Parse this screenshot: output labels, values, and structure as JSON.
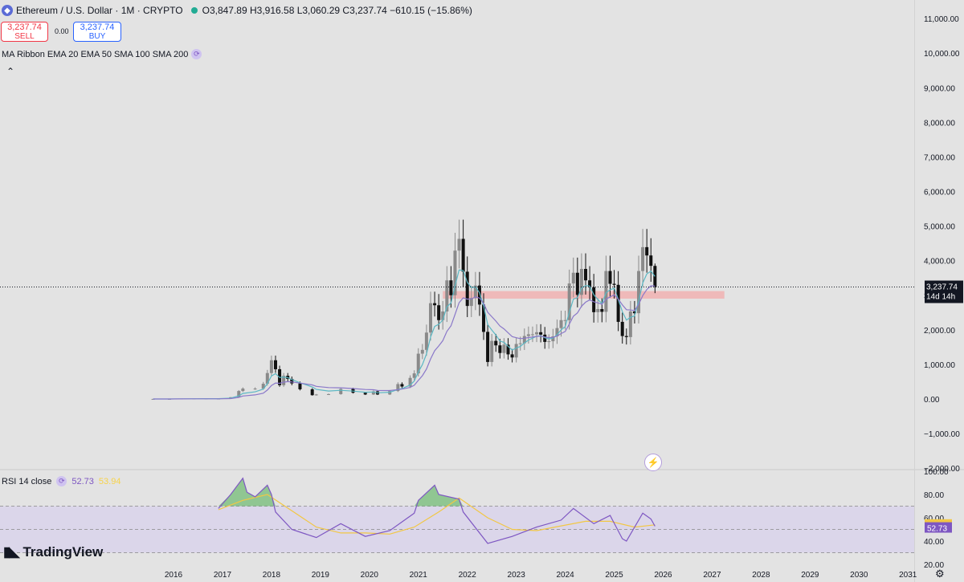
{
  "header": {
    "coin_icon": "ethereum-icon",
    "symbol": "Ethereum / U.S. Dollar · 1M · CRYPTO",
    "status_color": "#22ab94",
    "ohlc": "O3,847.89 H3,916.58 L3,060.29 C3,237.74 −610.15 (−15.86%)"
  },
  "trade": {
    "sell_price": "3,237.74",
    "sell_label": "SELL",
    "spread": "0.00",
    "buy_price": "3,237.74",
    "buy_label": "BUY"
  },
  "indicators": {
    "ma_ribbon": "MA Ribbon EMA 20 EMA 50 SMA 100 SMA 200",
    "rsi": "RSI 14 close",
    "rsi_value": "52.73",
    "rsi_ma_value": "53.94"
  },
  "price_tag": {
    "price": "3,237.74",
    "countdown": "14d 14h"
  },
  "logo": "TradingView",
  "colors": {
    "bull": "#8a8a8a",
    "bear": "#111111",
    "ma_fast": "#5bb8c4",
    "ma_slow": "#8a78c9",
    "zone": "#f0b4b4",
    "rsi": "#7e57c2",
    "rsi_ma": "#f2c744"
  },
  "chart_data": [
    {
      "type": "candlestick",
      "title": "Ethereum / U.S. Dollar · 1M · CRYPTO",
      "ylim": [
        -2000,
        11500
      ],
      "y_ticks": [
        "11,000.00",
        "10,000.00",
        "9,000.00",
        "8,000.00",
        "7,000.00",
        "6,000.00",
        "5,000.00",
        "4,000.00",
        "3,000.00",
        "2,000.00",
        "1,000.00",
        "0.00",
        "−1,000.00",
        "−2,000.00"
      ],
      "x_ticks": [
        "2016",
        "2017",
        "2018",
        "2019",
        "2020",
        "2021",
        "2022",
        "2023",
        "2024",
        "2025",
        "2026",
        "2027",
        "2028",
        "2029",
        "2030",
        "2031"
      ],
      "close_series": [
        [
          "2015-08",
          1
        ],
        [
          "2015-12",
          1
        ],
        [
          "2016-03",
          11
        ],
        [
          "2016-06",
          12
        ],
        [
          "2016-09",
          13
        ],
        [
          "2016-12",
          8
        ],
        [
          "2017-03",
          50
        ],
        [
          "2017-05",
          230
        ],
        [
          "2017-06",
          300
        ],
        [
          "2017-09",
          300
        ],
        [
          "2017-11",
          440
        ],
        [
          "2017-12",
          750
        ],
        [
          "2018-01",
          1120
        ],
        [
          "2018-02",
          860
        ],
        [
          "2018-03",
          400
        ],
        [
          "2018-04",
          670
        ],
        [
          "2018-05",
          580
        ],
        [
          "2018-06",
          450
        ],
        [
          "2018-08",
          280
        ],
        [
          "2018-11",
          110
        ],
        [
          "2018-12",
          130
        ],
        [
          "2019-03",
          140
        ],
        [
          "2019-06",
          290
        ],
        [
          "2019-09",
          180
        ],
        [
          "2019-12",
          130
        ],
        [
          "2020-02",
          220
        ],
        [
          "2020-03",
          130
        ],
        [
          "2020-06",
          230
        ],
        [
          "2020-08",
          430
        ],
        [
          "2020-09",
          360
        ],
        [
          "2020-11",
          610
        ],
        [
          "2020-12",
          740
        ],
        [
          "2021-01",
          1310
        ],
        [
          "2021-02",
          1420
        ],
        [
          "2021-03",
          1920
        ],
        [
          "2021-04",
          2770
        ],
        [
          "2021-05",
          2710
        ],
        [
          "2021-06",
          2280
        ],
        [
          "2021-07",
          2530
        ],
        [
          "2021-08",
          3430
        ],
        [
          "2021-09",
          3000
        ],
        [
          "2021-10",
          4290
        ],
        [
          "2021-11",
          4630
        ],
        [
          "2021-12",
          3680
        ],
        [
          "2022-01",
          2690
        ],
        [
          "2022-02",
          2920
        ],
        [
          "2022-03",
          3280
        ],
        [
          "2022-04",
          2730
        ],
        [
          "2022-05",
          1940
        ],
        [
          "2022-06",
          1070
        ],
        [
          "2022-07",
          1680
        ],
        [
          "2022-08",
          1550
        ],
        [
          "2022-09",
          1330
        ],
        [
          "2022-10",
          1570
        ],
        [
          "2022-11",
          1290
        ],
        [
          "2022-12",
          1200
        ],
        [
          "2023-01",
          1590
        ],
        [
          "2023-02",
          1610
        ],
        [
          "2023-03",
          1820
        ],
        [
          "2023-04",
          1870
        ],
        [
          "2023-05",
          1870
        ],
        [
          "2023-06",
          1930
        ],
        [
          "2023-07",
          1860
        ],
        [
          "2023-08",
          1650
        ],
        [
          "2023-09",
          1670
        ],
        [
          "2023-10",
          1810
        ],
        [
          "2023-11",
          2050
        ],
        [
          "2023-12",
          2280
        ],
        [
          "2024-01",
          2280
        ],
        [
          "2024-02",
          3340
        ],
        [
          "2024-03",
          3650
        ],
        [
          "2024-04",
          3010
        ],
        [
          "2024-05",
          3760
        ],
        [
          "2024-06",
          3430
        ],
        [
          "2024-07",
          3230
        ],
        [
          "2024-08",
          2510
        ],
        [
          "2024-09",
          2600
        ],
        [
          "2024-10",
          2520
        ],
        [
          "2024-11",
          3700
        ],
        [
          "2024-12",
          3330
        ],
        [
          "2025-01",
          3300
        ],
        [
          "2025-02",
          2230
        ],
        [
          "2025-03",
          1820
        ],
        [
          "2025-04",
          1790
        ],
        [
          "2025-05",
          2530
        ],
        [
          "2025-06",
          2480
        ],
        [
          "2025-07",
          3700
        ],
        [
          "2025-08",
          4390
        ],
        [
          "2025-09",
          4150
        ],
        [
          "2025-10",
          3850
        ],
        [
          "2025-11",
          3237.74
        ]
      ],
      "last_candle": {
        "open": 3847.89,
        "high": 3916.58,
        "low": 3060.29,
        "close": 3237.74
      },
      "resistance_zone": [
        2900,
        3120
      ],
      "series": [
        {
          "name": "EMA 20",
          "color": "#5bb8c4"
        },
        {
          "name": "EMA 50",
          "color": "#8a78c9"
        }
      ]
    },
    {
      "type": "line",
      "title": "RSI 14 close",
      "ylim": [
        20,
        100
      ],
      "y_ticks": [
        "100.00",
        "80.00",
        "60.00",
        "40.00",
        "20.00"
      ],
      "bands": [
        70,
        50,
        30
      ],
      "series": [
        {
          "name": "RSI",
          "values": [
            [
              "2016-12",
              68
            ],
            [
              "2017-03",
              80
            ],
            [
              "2017-06",
              94
            ],
            [
              "2017-07",
              82
            ],
            [
              "2017-09",
              78
            ],
            [
              "2017-12",
              88
            ],
            [
              "2018-01",
              80
            ],
            [
              "2018-02",
              65
            ],
            [
              "2018-06",
              50
            ],
            [
              "2018-12",
              43
            ],
            [
              "2019-06",
              55
            ],
            [
              "2019-12",
              44
            ],
            [
              "2020-06",
              49
            ],
            [
              "2020-12",
              64
            ],
            [
              "2021-01",
              75
            ],
            [
              "2021-05",
              88
            ],
            [
              "2021-06",
              80
            ],
            [
              "2021-11",
              76
            ],
            [
              "2021-12",
              65
            ],
            [
              "2022-06",
              38
            ],
            [
              "2022-12",
              44
            ],
            [
              "2023-06",
              52
            ],
            [
              "2023-12",
              58
            ],
            [
              "2024-03",
              68
            ],
            [
              "2024-08",
              55
            ],
            [
              "2024-12",
              62
            ],
            [
              "2025-03",
              42
            ],
            [
              "2025-04",
              40
            ],
            [
              "2025-08",
              64
            ],
            [
              "2025-10",
              59
            ],
            [
              "2025-11",
              52.73
            ]
          ]
        },
        {
          "name": "RSI-based MA",
          "values": [
            [
              "2016-12",
              67
            ],
            [
              "2017-06",
              75
            ],
            [
              "2017-12",
              80
            ],
            [
              "2018-06",
              66
            ],
            [
              "2018-12",
              52
            ],
            [
              "2019-06",
              47
            ],
            [
              "2019-12",
              47
            ],
            [
              "2020-06",
              46
            ],
            [
              "2020-12",
              52
            ],
            [
              "2021-06",
              65
            ],
            [
              "2021-11",
              77
            ],
            [
              "2022-06",
              60
            ],
            [
              "2022-12",
              50
            ],
            [
              "2023-06",
              49
            ],
            [
              "2023-12",
              53
            ],
            [
              "2024-06",
              57
            ],
            [
              "2024-12",
              57
            ],
            [
              "2025-06",
              52
            ],
            [
              "2025-11",
              53.94
            ]
          ]
        }
      ]
    }
  ]
}
